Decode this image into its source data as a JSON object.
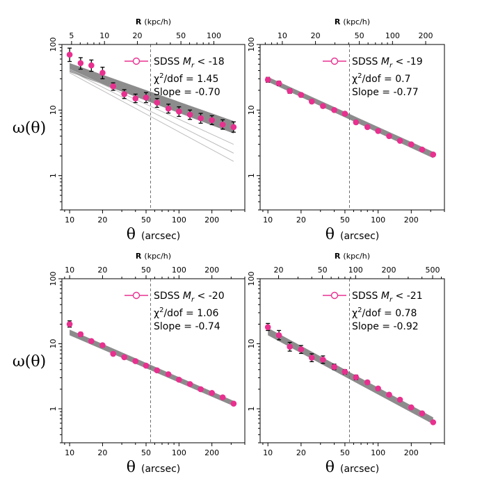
{
  "figure": {
    "ylabel": "ω(θ)",
    "xlabel_symbol": "θ",
    "xlabel_unit": "(arcsec)",
    "top_label_bold": "R",
    "top_label_unit": "(kpc/h)"
  },
  "colors": {
    "point": "#e8308f",
    "band": "#8c8c8c",
    "band_light": "#bdbdbd",
    "error_bar": "#000000",
    "vline": "#707070"
  },
  "chart_data": [
    {
      "type": "scatter",
      "panel": "Mr < -18",
      "legend": {
        "prefix": "SDSS ",
        "symbol": "M",
        "subscript": "r",
        "suffix": " < -18"
      },
      "chi2_label": "χ",
      "chi2_sup": "2",
      "chi2_text": "/dof = 1.45",
      "slope_text": "Slope = -0.70",
      "xscale": "log",
      "yscale": "log",
      "xlim": [
        8.5,
        400
      ],
      "ylim": [
        0.3,
        100
      ],
      "x_ticks": [
        10,
        20,
        50,
        100,
        200
      ],
      "y_ticks": [
        1,
        10,
        100
      ],
      "top_ticks": [
        5,
        10,
        20,
        50,
        100
      ],
      "top_ratio": 0.48,
      "vline_x": 55,
      "x": [
        10,
        12.6,
        15.8,
        20,
        25,
        31.6,
        40,
        50,
        63,
        80,
        100,
        126,
        158,
        200,
        251,
        316
      ],
      "y": [
        70,
        52,
        48,
        37,
        23,
        17.5,
        15,
        15.5,
        13,
        10.5,
        9.5,
        8.5,
        7.5,
        7,
        6,
        5.5
      ],
      "yerr": [
        [
          55,
          88
        ],
        [
          42,
          63
        ],
        [
          39,
          58
        ],
        [
          30,
          45
        ],
        [
          20,
          26
        ],
        [
          15,
          20.5
        ],
        [
          13,
          17.5
        ],
        [
          13,
          18.5
        ],
        [
          11,
          15
        ],
        [
          9,
          12.3
        ],
        [
          8,
          11.2
        ],
        [
          7.2,
          10
        ],
        [
          6.3,
          8.9
        ],
        [
          6,
          8.2
        ],
        [
          5.1,
          7.1
        ],
        [
          4.6,
          6.6
        ]
      ],
      "band": {
        "x0": 10,
        "x1": 316,
        "upper0": 52,
        "upper1": 6.8,
        "lower0": 38,
        "lower1": 4.4
      },
      "light_lines": [
        {
          "x0": 10,
          "x1": 316,
          "y0": 42,
          "y1": 3.0
        },
        {
          "x0": 10,
          "x1": 316,
          "y0": 40,
          "y1": 2.2
        },
        {
          "x0": 10,
          "x1": 316,
          "y0": 37,
          "y1": 1.65
        }
      ]
    },
    {
      "type": "scatter",
      "panel": "Mr < -19",
      "legend": {
        "prefix": "SDSS ",
        "symbol": "M",
        "subscript": "r",
        "suffix": " < -19"
      },
      "chi2_label": "χ",
      "chi2_sup": "2",
      "chi2_text": "/dof = 0.7",
      "slope_text": "Slope = -0.77",
      "xscale": "log",
      "yscale": "log",
      "xlim": [
        8.5,
        400
      ],
      "ylim": [
        0.3,
        100
      ],
      "x_ticks": [
        10,
        20,
        50,
        100,
        200
      ],
      "y_ticks": [
        1,
        10,
        100
      ],
      "top_ticks": [
        10,
        20,
        50,
        100,
        200
      ],
      "top_ratio": 0.74,
      "vline_x": 55,
      "x": [
        10,
        12.6,
        15.8,
        20,
        25,
        31.6,
        40,
        50,
        63,
        80,
        100,
        126,
        158,
        200,
        251,
        316
      ],
      "y": [
        29,
        25.5,
        19.5,
        17,
        13.5,
        11.5,
        10,
        8.8,
        6.5,
        5.5,
        4.8,
        4,
        3.4,
        3,
        2.5,
        2.1
      ],
      "yerr": [
        [
          26.5,
          31.5
        ],
        [
          23.5,
          27.5
        ],
        [
          18,
          21
        ],
        [
          15.8,
          18.2
        ],
        [
          12.6,
          14.4
        ],
        [
          10.8,
          12.2
        ],
        [
          9.4,
          10.6
        ],
        [
          8.3,
          9.3
        ],
        [
          6.1,
          6.9
        ],
        [
          5.2,
          5.8
        ],
        [
          4.55,
          5.05
        ],
        [
          3.8,
          4.2
        ],
        [
          3.23,
          3.57
        ],
        [
          2.85,
          3.15
        ],
        [
          2.38,
          2.62
        ],
        [
          2.0,
          2.2
        ]
      ],
      "band": {
        "x0": 10,
        "x1": 316,
        "upper0": 32,
        "upper1": 2.3,
        "lower0": 27,
        "lower1": 1.85
      },
      "light_lines": []
    },
    {
      "type": "scatter",
      "panel": "Mr < -20",
      "legend": {
        "prefix": "SDSS ",
        "symbol": "M",
        "subscript": "r",
        "suffix": " < -20"
      },
      "chi2_label": "χ",
      "chi2_sup": "2",
      "chi2_text": "/dof = 1.06",
      "slope_text": "Slope = -0.74",
      "xscale": "log",
      "yscale": "log",
      "xlim": [
        8.5,
        400
      ],
      "ylim": [
        0.3,
        100
      ],
      "x_ticks": [
        10,
        20,
        50,
        100,
        200
      ],
      "y_ticks": [
        1,
        10,
        100
      ],
      "top_ticks": [
        10,
        20,
        50,
        100,
        200
      ],
      "top_ratio": 1.0,
      "vline_x": 55,
      "x": [
        10,
        12.6,
        15.8,
        20,
        25,
        31.6,
        40,
        50,
        63,
        80,
        100,
        126,
        158,
        200,
        251,
        316
      ],
      "y": [
        20,
        14,
        11,
        9.5,
        7,
        6.2,
        5.4,
        4.6,
        3.9,
        3.4,
        2.8,
        2.4,
        2.0,
        1.75,
        1.5,
        1.2
      ],
      "yerr": [
        [
          18,
          22.5
        ],
        [
          13,
          15
        ],
        [
          10.3,
          11.7
        ],
        [
          8.9,
          10.1
        ],
        [
          6.6,
          7.4
        ],
        [
          5.85,
          6.55
        ],
        [
          5.1,
          5.7
        ],
        [
          4.35,
          4.85
        ],
        [
          3.7,
          4.1
        ],
        [
          3.22,
          3.58
        ],
        [
          2.65,
          2.95
        ],
        [
          2.27,
          2.53
        ],
        [
          1.9,
          2.1
        ],
        [
          1.65,
          1.85
        ],
        [
          1.42,
          1.58
        ],
        [
          1.13,
          1.27
        ]
      ],
      "band": {
        "x0": 10,
        "x1": 316,
        "upper0": 16.5,
        "upper1": 1.32,
        "lower0": 13.5,
        "lower1": 1.1
      },
      "light_lines": []
    },
    {
      "type": "scatter",
      "panel": "Mr < -21",
      "legend": {
        "prefix": "SDSS ",
        "symbol": "M",
        "subscript": "r",
        "suffix": " < -21"
      },
      "chi2_label": "χ",
      "chi2_sup": "2",
      "chi2_text": "/dof = 0.78",
      "slope_text": "Slope = -0.92",
      "xscale": "log",
      "yscale": "log",
      "xlim": [
        8.5,
        400
      ],
      "ylim": [
        0.3,
        100
      ],
      "x_ticks": [
        10,
        20,
        50,
        100,
        200
      ],
      "y_ticks": [
        1,
        10,
        100
      ],
      "top_ticks": [
        20,
        50,
        100,
        200,
        500
      ],
      "top_ratio": 1.6,
      "vline_x": 55,
      "x": [
        10,
        12.6,
        15.8,
        20,
        25,
        31.6,
        40,
        50,
        63,
        80,
        100,
        126,
        158,
        200,
        251,
        316
      ],
      "y": [
        18,
        13.5,
        9,
        8.2,
        6.1,
        5.7,
        4.4,
        3.7,
        3.05,
        2.55,
        2.05,
        1.65,
        1.38,
        1.05,
        0.85,
        0.62
      ],
      "yerr": [
        [
          16,
          20.5
        ],
        [
          11.5,
          16
        ],
        [
          7.7,
          10.5
        ],
        [
          7.1,
          9.4
        ],
        [
          5.3,
          7
        ],
        [
          5.0,
          6.5
        ],
        [
          4.0,
          4.85
        ],
        [
          3.4,
          4.0
        ],
        [
          2.8,
          3.3
        ],
        [
          2.38,
          2.72
        ],
        [
          1.92,
          2.18
        ],
        [
          1.56,
          1.74
        ],
        [
          1.3,
          1.46
        ],
        [
          1.0,
          1.1
        ],
        [
          0.81,
          0.89
        ],
        [
          0.59,
          0.65
        ]
      ],
      "band": {
        "x0": 10,
        "x1": 316,
        "upper0": 17.5,
        "upper1": 0.74,
        "lower0": 13.5,
        "lower1": 0.58
      },
      "light_lines": []
    }
  ]
}
